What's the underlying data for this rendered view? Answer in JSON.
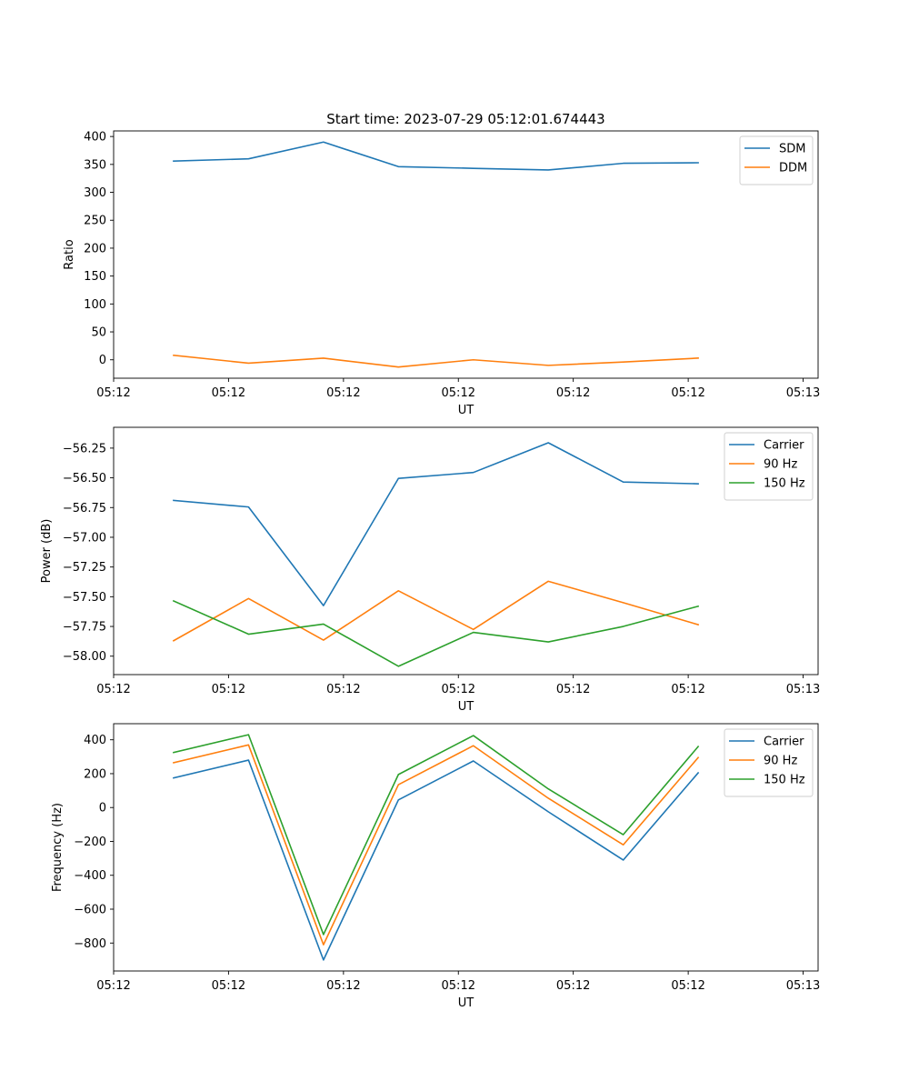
{
  "figure_title": "Start time: 2023-07-29 05:12:01.674443",
  "chart_data": [
    {
      "type": "line",
      "title": "Start time: 2023-07-29 05:12:01.674443",
      "xlabel": "UT",
      "ylabel": "Ratio",
      "x": [
        1,
        2,
        3,
        4,
        5,
        6,
        7,
        8
      ],
      "xlim": [
        0.2,
        9.6
      ],
      "xticks": [
        0.2,
        1.733,
        3.267,
        4.8,
        6.333,
        7.867,
        9.4
      ],
      "xtick_labels": [
        "05:12",
        "05:12",
        "05:12",
        "05:12",
        "05:12",
        "05:12",
        "05:13"
      ],
      "ylim": [
        -33,
        410
      ],
      "yticks": [
        0,
        50,
        100,
        150,
        200,
        250,
        300,
        350,
        400
      ],
      "ytick_labels": [
        "0",
        "50",
        "100",
        "150",
        "200",
        "250",
        "300",
        "350",
        "400"
      ],
      "legend": "top-right",
      "series": [
        {
          "name": "SDM",
          "color": "#1f77b4",
          "values": [
            356,
            360,
            390,
            346,
            343,
            340,
            352,
            353
          ]
        },
        {
          "name": "DDM",
          "color": "#ff7f0e",
          "values": [
            8,
            -6,
            3,
            -13,
            0,
            -10,
            -4,
            3
          ]
        }
      ]
    },
    {
      "type": "line",
      "title": "",
      "xlabel": "UT",
      "ylabel": "Power (dB)",
      "x": [
        1,
        2,
        3,
        4,
        5,
        6,
        7,
        8
      ],
      "xlim": [
        0.2,
        9.6
      ],
      "xticks": [
        0.2,
        1.733,
        3.267,
        4.8,
        6.333,
        7.867,
        9.4
      ],
      "xtick_labels": [
        "05:12",
        "05:12",
        "05:12",
        "05:12",
        "05:12",
        "05:12",
        "05:13"
      ],
      "ylim": [
        -58.155,
        -56.075
      ],
      "yticks": [
        -58.0,
        -57.75,
        -57.5,
        -57.25,
        -57.0,
        -56.75,
        -56.5,
        -56.25
      ],
      "ytick_labels": [
        "−58.00",
        "−57.75",
        "−57.50",
        "−57.25",
        "−57.00",
        "−56.75",
        "−56.50",
        "−56.25"
      ],
      "legend": "top-right",
      "series": [
        {
          "name": "Carrier",
          "color": "#1f77b4",
          "values": [
            -56.69,
            -56.745,
            -57.575,
            -56.505,
            -56.455,
            -56.205,
            -56.535,
            -56.55
          ]
        },
        {
          "name": "90 Hz",
          "color": "#ff7f0e",
          "values": [
            -57.87,
            -57.515,
            -57.865,
            -57.45,
            -57.775,
            -57.37,
            -57.55,
            -57.735
          ]
        },
        {
          "name": "150 Hz",
          "color": "#2ca02c",
          "values": [
            -57.535,
            -57.815,
            -57.73,
            -58.085,
            -57.8,
            -57.88,
            -57.75,
            -57.58
          ]
        }
      ]
    },
    {
      "type": "line",
      "title": "",
      "xlabel": "UT",
      "ylabel": "Frequency (Hz)",
      "x": [
        1,
        2,
        3,
        4,
        5,
        6,
        7,
        8
      ],
      "xlim": [
        0.2,
        9.6
      ],
      "xticks": [
        0.2,
        1.733,
        3.267,
        4.8,
        6.333,
        7.867,
        9.4
      ],
      "xtick_labels": [
        "05:12",
        "05:12",
        "05:12",
        "05:12",
        "05:12",
        "05:12",
        "05:13"
      ],
      "ylim": [
        -965,
        495
      ],
      "yticks": [
        -800,
        -600,
        -400,
        -200,
        0,
        200,
        400
      ],
      "ytick_labels": [
        "−800",
        "−600",
        "−400",
        "−200",
        "0",
        "200",
        "400"
      ],
      "legend": "top-right",
      "series": [
        {
          "name": "Carrier",
          "color": "#1f77b4",
          "values": [
            175,
            280,
            -900,
            45,
            275,
            -25,
            -310,
            205
          ]
        },
        {
          "name": "90 Hz",
          "color": "#ff7f0e",
          "values": [
            265,
            370,
            -810,
            135,
            365,
            55,
            -220,
            295
          ]
        },
        {
          "name": "150 Hz",
          "color": "#2ca02c",
          "values": [
            325,
            430,
            -750,
            195,
            425,
            110,
            -160,
            360
          ]
        }
      ]
    }
  ]
}
